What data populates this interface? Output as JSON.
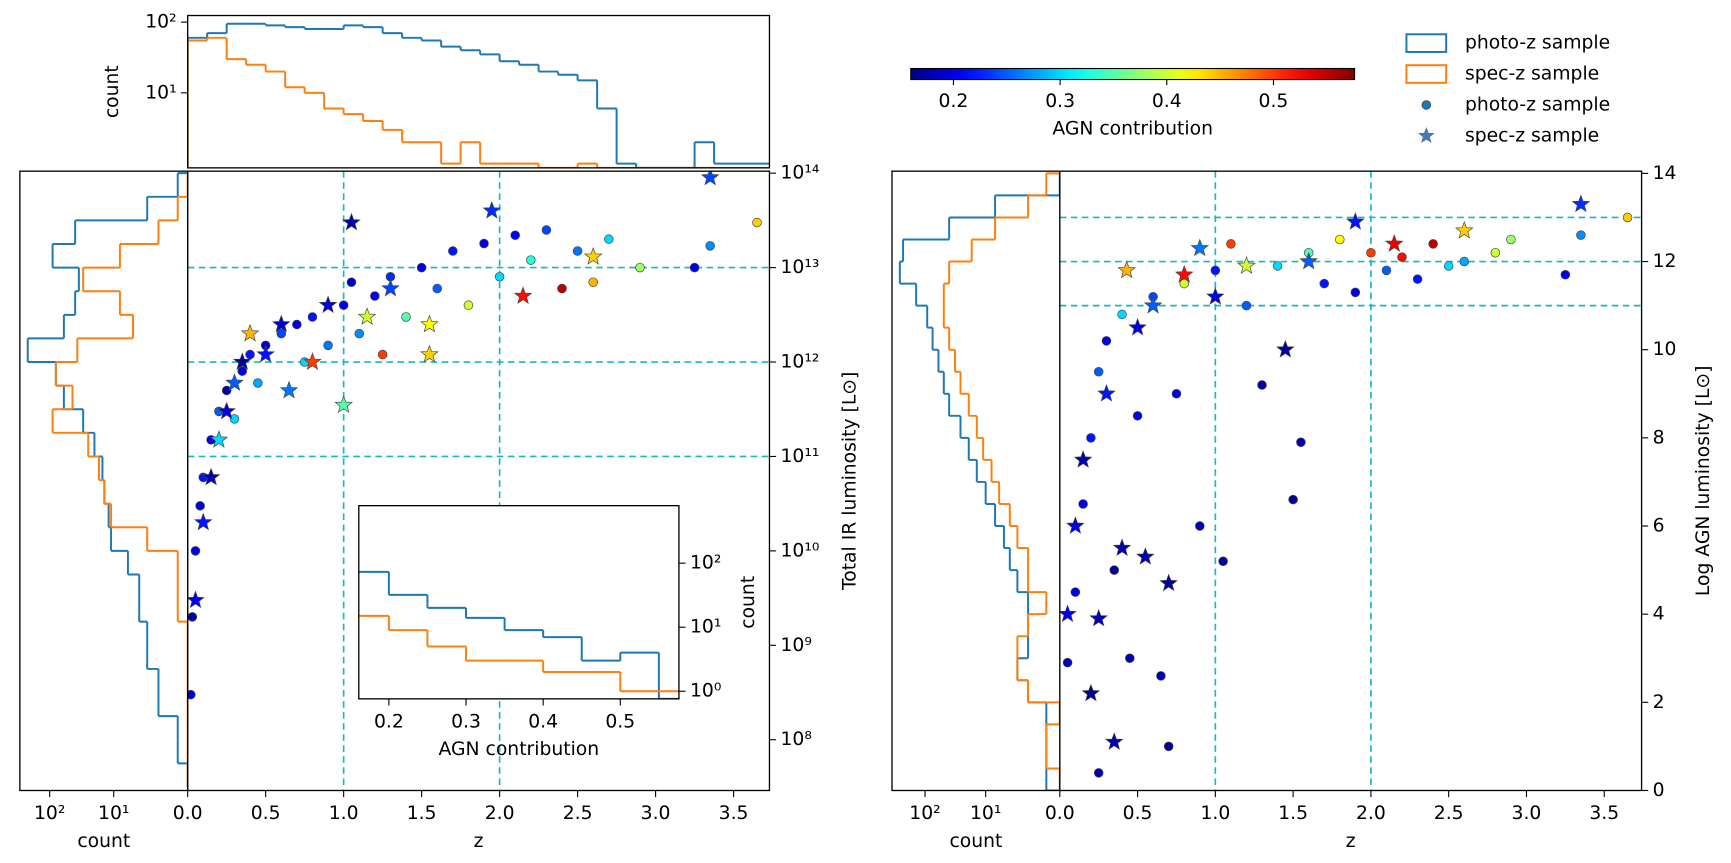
{
  "chart_data": [
    {
      "type": "histogram",
      "orientation": "vertical",
      "ylabel": "count",
      "xlim": [
        0,
        3.73
      ],
      "ylim": [
        0.87,
        124
      ],
      "ylog": true,
      "yticks": [
        {
          "value": 10,
          "label": "10¹"
        },
        {
          "value": 100,
          "label": "10²"
        }
      ],
      "bins": [
        0,
        0.125,
        0.25,
        0.375,
        0.5,
        0.625,
        0.75,
        0.875,
        1.0,
        1.125,
        1.25,
        1.375,
        1.5,
        1.625,
        1.75,
        1.875,
        2.0,
        2.125,
        2.25,
        2.375,
        2.5,
        2.625,
        2.75,
        2.875,
        3.0,
        3.125,
        3.25,
        3.375,
        3.5,
        3.625,
        3.75
      ],
      "series": [
        {
          "name": "photo-z sample",
          "color": "#1f77b4",
          "values": [
            60,
            70,
            95,
            95,
            90,
            85,
            80,
            80,
            90,
            85,
            70,
            60,
            55,
            45,
            40,
            35,
            28,
            25,
            20,
            18,
            15,
            6,
            1,
            0,
            0,
            0,
            2,
            1,
            1,
            1
          ]
        },
        {
          "name": "spec-z sample",
          "color": "#ff7f0e",
          "values": [
            55,
            60,
            30,
            25,
            20,
            12,
            10,
            6,
            5,
            4,
            3,
            2,
            2,
            1,
            2,
            1,
            1,
            1,
            0,
            0,
            1,
            0,
            0,
            0,
            0,
            0,
            0,
            0,
            0,
            0
          ]
        }
      ]
    },
    {
      "type": "scatter",
      "xlabel": "z",
      "ylabel": "Total IR luminosity [L⊙]",
      "yaxis_side": "right",
      "xlim": [
        0,
        3.73
      ],
      "ylim": [
        29000000.0,
        105000000000000.0
      ],
      "ylog": true,
      "xticks": [
        {
          "value": 0,
          "label": "0.0"
        },
        0.5,
        {
          "value": 1,
          "label": "1.0"
        },
        1.5,
        {
          "value": 2,
          "label": "2.0"
        },
        2.5,
        {
          "value": 3,
          "label": "3.0"
        },
        3.5
      ],
      "yticks": [
        {
          "value": 100000000.0,
          "label": "10⁸"
        },
        {
          "value": 1000000000.0,
          "label": "10⁹"
        },
        {
          "value": 10000000000.0,
          "label": "10¹⁰"
        },
        {
          "value": 100000000000.0,
          "label": "10¹¹"
        },
        {
          "value": 1000000000000.0,
          "label": "10¹²"
        },
        {
          "value": 10000000000000.0,
          "label": "10¹³"
        },
        {
          "value": 100000000000000.0,
          "label": "10¹⁴"
        }
      ],
      "vlines": [
        1,
        2
      ],
      "hlines": [
        100000000000.0,
        1000000000000.0,
        10000000000000.0
      ],
      "line_color": "#17b8be",
      "clim": [
        0.16,
        0.576
      ],
      "series": [
        {
          "name": "photo-z sample",
          "marker": "circle",
          "x": [
            0.02,
            0.03,
            0.05,
            0.08,
            0.1,
            0.15,
            0.2,
            0.25,
            0.3,
            0.35,
            0.4,
            0.45,
            0.5,
            0.6,
            0.7,
            0.75,
            0.8,
            0.9,
            1.0,
            1.05,
            1.1,
            1.2,
            1.3,
            1.4,
            1.5,
            1.6,
            1.7,
            1.8,
            1.9,
            2.0,
            2.1,
            2.2,
            2.3,
            2.4,
            2.5,
            2.6,
            2.7,
            2.9,
            3.25,
            3.35,
            3.65,
            1.25
          ],
          "values": [
            300000000.0,
            2000000000.0,
            10000000000.0,
            30000000000.0,
            60000000000.0,
            150000000000.0,
            300000000000.0,
            500000000000.0,
            250000000000.0,
            800000000000.0,
            1200000000000.0,
            600000000000.0,
            1500000000000.0,
            2000000000000.0,
            2500000000000.0,
            1000000000000.0,
            3000000000000.0,
            1500000000000.0,
            4000000000000.0,
            7000000000000.0,
            2000000000000.0,
            5000000000000.0,
            8000000000000.0,
            3000000000000.0,
            10000000000000.0,
            6000000000000.0,
            15000000000000.0,
            4000000000000.0,
            18000000000000.0,
            8000000000000.0,
            22000000000000.0,
            12000000000000.0,
            25000000000000.0,
            6000000000000.0,
            15000000000000.0,
            7000000000000.0,
            20000000000000.0,
            10000000000000.0,
            10000000000000.0,
            17000000000000.0,
            30000000000000.0,
            1200000000000.0
          ],
          "agn": [
            0.2,
            0.18,
            0.2,
            0.19,
            0.22,
            0.2,
            0.25,
            0.18,
            0.3,
            0.2,
            0.22,
            0.28,
            0.19,
            0.24,
            0.2,
            0.3,
            0.22,
            0.26,
            0.2,
            0.19,
            0.27,
            0.21,
            0.23,
            0.35,
            0.2,
            0.25,
            0.22,
            0.4,
            0.2,
            0.3,
            0.21,
            0.33,
            0.24,
            0.55,
            0.26,
            0.45,
            0.3,
            0.38,
            0.2,
            0.27,
            0.44,
            0.5
          ]
        },
        {
          "name": "spec-z sample",
          "marker": "star",
          "x": [
            0.05,
            0.1,
            0.15,
            0.2,
            0.25,
            0.3,
            0.35,
            0.4,
            0.5,
            0.6,
            0.8,
            0.9,
            1.0,
            1.05,
            1.15,
            1.3,
            1.55,
            1.55,
            1.95,
            2.15,
            2.6,
            0.65,
            3.35
          ],
          "values": [
            3000000000.0,
            20000000000.0,
            60000000000.0,
            150000000000.0,
            300000000000.0,
            600000000000.0,
            1000000000000.0,
            2000000000000.0,
            1200000000000.0,
            2500000000000.0,
            1000000000000.0,
            4000000000000.0,
            350000000000.0,
            30000000000000.0,
            3000000000000.0,
            6000000000000.0,
            1200000000000.0,
            2500000000000.0,
            40000000000000.0,
            5000000000000.0,
            13000000000000.0,
            500000000000.0,
            90000000000000.0
          ],
          "agn": [
            0.2,
            0.22,
            0.18,
            0.3,
            0.2,
            0.25,
            0.17,
            0.45,
            0.22,
            0.19,
            0.5,
            0.2,
            0.35,
            0.18,
            0.4,
            0.24,
            0.44,
            0.42,
            0.23,
            0.52,
            0.44,
            0.26,
            0.24
          ]
        }
      ]
    },
    {
      "type": "histogram",
      "orientation": "horizontal",
      "xlabel": "count",
      "xlim": [
        292,
        0.7
      ],
      "xlog": true,
      "ylim": [
        29000000.0,
        105000000000000.0
      ],
      "ylog": true,
      "xticks": [
        {
          "value": 100,
          "label": "10²"
        },
        {
          "value": 10,
          "label": "10¹"
        }
      ],
      "bins": [
        31600000.0,
        56200000.0,
        100000000.0,
        178000000.0,
        316000000.0,
        562000000.0,
        1000000000.0,
        1780000000.0,
        3160000000.0,
        5620000000.0,
        10000000000.0,
        17800000000.0,
        31600000000.0,
        56200000000.0,
        100000000000.0,
        178000000000.0,
        316000000000.0,
        562000000000.0,
        1000000000000.0,
        1780000000000.0,
        3160000000000.0,
        5620000000000.0,
        10000000000000.0,
        17800000000000.0,
        31600000000000.0,
        56200000000000.0,
        100000000000000.0
      ],
      "series": [
        {
          "name": "photo-z sample",
          "color": "#1f77b4",
          "values": [
            0,
            1,
            1,
            2,
            2,
            3,
            3,
            4,
            4,
            6,
            11,
            12,
            14,
            15,
            20,
            30,
            60,
            80,
            220,
            60,
            40,
            35,
            90,
            40,
            3,
            1
          ]
        },
        {
          "name": "spec-z sample",
          "color": "#ff7f0e",
          "values": [
            0,
            0,
            0,
            0,
            0,
            0,
            0,
            1,
            1,
            1,
            3,
            11,
            14,
            17,
            25,
            90,
            44,
            80,
            37,
            5,
            8,
            30,
            8,
            2,
            1,
            0
          ]
        }
      ]
    },
    {
      "type": "histogram",
      "orientation": "vertical",
      "xlabel": "AGN contribution",
      "ylabel": "count",
      "yaxis_side": "right",
      "xlim": [
        0.161,
        0.576
      ],
      "ylim": [
        0.76,
        790
      ],
      "ylog": true,
      "xticks": [
        0.2,
        0.3,
        0.4,
        0.5
      ],
      "yticks": [
        {
          "value": 1,
          "label": "10⁰"
        },
        {
          "value": 10,
          "label": "10¹"
        },
        {
          "value": 100,
          "label": "10²"
        }
      ],
      "bins": [
        0.15,
        0.2,
        0.25,
        0.3,
        0.35,
        0.4,
        0.45,
        0.5,
        0.55,
        0.6
      ],
      "series": [
        {
          "name": "photo-z sample",
          "color": "#1f77b4",
          "values": [
            73,
            32,
            20,
            14,
            9,
            7,
            3,
            4,
            0
          ]
        },
        {
          "name": "spec-z sample",
          "color": "#ff7f0e",
          "values": [
            15,
            9,
            5,
            3,
            3,
            2,
            2,
            1,
            1
          ]
        }
      ]
    },
    {
      "type": "scatter",
      "xlabel": "z",
      "ylabel": "Log AGN luminosity [L⊙]",
      "yaxis_side": "right",
      "xlim": [
        0,
        3.74
      ],
      "ylim": [
        0,
        14.05
      ],
      "xticks": [
        {
          "value": 0,
          "label": "0.0"
        },
        0.5,
        {
          "value": 1,
          "label": "1.0"
        },
        1.5,
        {
          "value": 2,
          "label": "2.0"
        },
        2.5,
        {
          "value": 3,
          "label": "3.0"
        },
        3.5
      ],
      "yticks": [
        0,
        2,
        4,
        6,
        8,
        10,
        12,
        14
      ],
      "vlines": [
        1,
        2
      ],
      "hlines": [
        11,
        12,
        13
      ],
      "line_color": "#17b8be",
      "clim": [
        0.16,
        0.576
      ],
      "colorbar": {
        "label": "AGN contribution",
        "ticks": [
          0.2,
          0.3,
          0.4,
          0.5
        ]
      },
      "legend": [
        {
          "label": "photo-z sample",
          "kind": "step",
          "color": "#1f77b4"
        },
        {
          "label": "spec-z sample",
          "kind": "step",
          "color": "#ff7f0e"
        },
        {
          "label": "photo-z sample",
          "kind": "circle",
          "color": "#1f77b4"
        },
        {
          "label": "spec-z sample",
          "kind": "star",
          "color": "#4a78b0"
        }
      ],
      "series": [
        {
          "name": "photo-z sample",
          "marker": "circle",
          "x": [
            0.05,
            0.1,
            0.15,
            0.2,
            0.25,
            0.3,
            0.35,
            0.4,
            0.45,
            0.5,
            0.6,
            0.7,
            0.75,
            0.8,
            0.9,
            1.0,
            1.05,
            1.1,
            1.2,
            1.3,
            1.4,
            1.5,
            1.55,
            1.6,
            1.7,
            1.8,
            1.9,
            2.0,
            2.1,
            2.2,
            2.3,
            2.4,
            2.5,
            2.6,
            2.8,
            2.9,
            3.25,
            3.35,
            3.65,
            0.25,
            0.65
          ],
          "values": [
            2.9,
            4.5,
            6.5,
            8,
            9.5,
            10.2,
            5,
            10.8,
            3,
            8.5,
            11.2,
            1,
            9,
            11.5,
            6,
            11.8,
            5.2,
            12.4,
            11,
            9.2,
            11.9,
            6.6,
            7.9,
            12.2,
            11.5,
            12.5,
            11.3,
            12.2,
            11.8,
            12.1,
            11.6,
            12.4,
            11.9,
            12,
            12.2,
            12.5,
            11.7,
            12.6,
            13,
            0.4,
            2.6
          ],
          "agn": [
            0.18,
            0.2,
            0.2,
            0.22,
            0.25,
            0.2,
            0.17,
            0.3,
            0.18,
            0.2,
            0.24,
            0.17,
            0.2,
            0.4,
            0.18,
            0.22,
            0.17,
            0.5,
            0.25,
            0.18,
            0.3,
            0.17,
            0.18,
            0.35,
            0.22,
            0.42,
            0.2,
            0.5,
            0.25,
            0.52,
            0.22,
            0.55,
            0.3,
            0.28,
            0.4,
            0.38,
            0.2,
            0.27,
            0.44,
            0.18,
            0.18
          ]
        },
        {
          "name": "spec-z sample",
          "marker": "star",
          "x": [
            0.05,
            0.1,
            0.15,
            0.2,
            0.25,
            0.3,
            0.35,
            0.4,
            0.43,
            0.5,
            0.6,
            0.7,
            0.8,
            0.9,
            1.0,
            1.2,
            1.45,
            1.6,
            1.9,
            2.15,
            2.6,
            3.35,
            0.55
          ],
          "values": [
            4,
            6,
            7.5,
            2.2,
            3.9,
            9,
            1.1,
            5.5,
            11.8,
            10.5,
            11,
            4.7,
            11.7,
            12.3,
            11.2,
            11.9,
            10,
            12,
            12.9,
            12.4,
            12.7,
            13.3,
            5.3
          ],
          "agn": [
            0.2,
            0.2,
            0.18,
            0.17,
            0.18,
            0.22,
            0.18,
            0.18,
            0.45,
            0.2,
            0.25,
            0.17,
            0.52,
            0.26,
            0.2,
            0.4,
            0.17,
            0.25,
            0.22,
            0.53,
            0.44,
            0.23,
            0.18
          ]
        }
      ]
    },
    {
      "type": "histogram",
      "orientation": "horizontal",
      "xlabel": "count",
      "xlim": [
        350,
        0.6
      ],
      "xlog": true,
      "ylim": [
        0,
        14.05
      ],
      "xticks": [
        {
          "value": 100,
          "label": "10²"
        },
        {
          "value": 10,
          "label": "10¹"
        }
      ],
      "bins": [
        0,
        0.5,
        1,
        1.5,
        2,
        2.5,
        3,
        3.5,
        4,
        4.5,
        5,
        5.5,
        6,
        6.5,
        7,
        7.5,
        8,
        8.5,
        9,
        9.5,
        10,
        10.5,
        11,
        11.5,
        12,
        12.5,
        13,
        13.5,
        14
      ],
      "series": [
        {
          "name": "photo-z sample",
          "color": "#1f77b4",
          "values": [
            1,
            1,
            1,
            1,
            2,
            3,
            2,
            2,
            2,
            3,
            4,
            5,
            7,
            10,
            14,
            19,
            26,
            40,
            49,
            60,
            75,
            92,
            140,
            260,
            230,
            40,
            7,
            0
          ]
        },
        {
          "name": "spec-z sample",
          "color": "#ff7f0e",
          "values": [
            0,
            1,
            1,
            0,
            2,
            3,
            3,
            2,
            1,
            2,
            2,
            3,
            4,
            6,
            8,
            11,
            14,
            19,
            26,
            32,
            40,
            49,
            49,
            40,
            17,
            7,
            2,
            1
          ]
        }
      ]
    }
  ]
}
